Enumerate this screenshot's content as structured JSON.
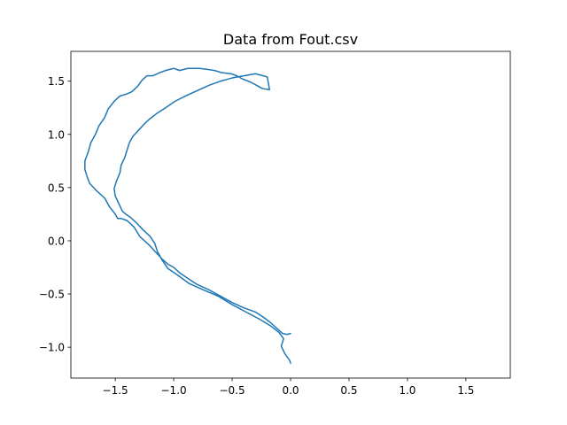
{
  "chart_data": {
    "type": "line",
    "title": "Data from Fout.csv",
    "xlabel": "",
    "ylabel": "",
    "xlim": [
      -1.88,
      1.88
    ],
    "ylim": [
      -1.29,
      1.78
    ],
    "xticks": [
      -1.5,
      -1.0,
      -0.5,
      0.0,
      0.5,
      1.0,
      1.5
    ],
    "xtick_labels": [
      "−1.5",
      "−1.0",
      "−0.5",
      "0.0",
      "0.5",
      "1.0",
      "1.5"
    ],
    "yticks": [
      -1.0,
      -0.5,
      0.0,
      0.5,
      1.0,
      1.5
    ],
    "ytick_labels": [
      "−1.0",
      "−0.5",
      "0.0",
      "0.5",
      "1.0",
      "1.5"
    ],
    "grid": false,
    "line_color": "#1f77b4",
    "series": [
      {
        "x": [
          0.0,
          -0.01,
          -0.05,
          -0.08,
          -0.06,
          -0.1,
          -0.17,
          -0.26,
          -0.38,
          -0.5,
          -0.62,
          -0.75,
          -0.87,
          -0.97,
          -1.05,
          -1.1,
          -1.14,
          -1.16,
          -1.2,
          -1.26,
          -1.32,
          -1.37,
          -1.41,
          -1.44,
          -1.47,
          -1.5,
          -1.51,
          -1.49,
          -1.46,
          -1.45,
          -1.42,
          -1.4,
          -1.38,
          -1.35,
          -1.3,
          -1.25,
          -1.2,
          -1.14,
          -1.07,
          -0.99,
          -0.9,
          -0.8,
          -0.7,
          -0.6,
          -0.5,
          -0.4,
          -0.3,
          -0.2,
          -0.18,
          -0.24,
          -0.29,
          -0.34,
          -0.41,
          -0.46,
          -0.51,
          -0.59,
          -0.65,
          -0.71,
          -0.78,
          -0.83,
          -0.88,
          -0.95,
          -1.0,
          -1.07,
          -1.12,
          -1.18,
          -1.23,
          -1.27,
          -1.31,
          -1.36,
          -1.4,
          -1.46,
          -1.51,
          -1.56,
          -1.59,
          -1.64,
          -1.67,
          -1.71,
          -1.73,
          -1.76,
          -1.76,
          -1.74,
          -1.72,
          -1.66,
          -1.59,
          -1.55,
          -1.5,
          -1.48,
          -1.45,
          -1.4,
          -1.34,
          -1.29,
          -1.21,
          -1.16,
          -1.1,
          -1.05,
          -1.0,
          -0.95,
          -0.87,
          -0.8,
          -0.7,
          -0.6,
          -0.5,
          -0.4,
          -0.3,
          -0.23,
          -0.17,
          -0.12,
          -0.09,
          -0.09,
          -0.07,
          -0.03,
          0.0
        ],
        "y": [
          -1.15,
          -1.12,
          -1.06,
          -0.99,
          -0.92,
          -0.86,
          -0.8,
          -0.74,
          -0.67,
          -0.6,
          -0.52,
          -0.46,
          -0.4,
          -0.32,
          -0.26,
          -0.18,
          -0.1,
          -0.03,
          0.04,
          0.1,
          0.17,
          0.22,
          0.25,
          0.28,
          0.35,
          0.42,
          0.49,
          0.56,
          0.64,
          0.71,
          0.78,
          0.85,
          0.92,
          0.98,
          1.04,
          1.1,
          1.15,
          1.2,
          1.25,
          1.31,
          1.36,
          1.41,
          1.46,
          1.5,
          1.53,
          1.55,
          1.57,
          1.54,
          1.42,
          1.43,
          1.46,
          1.49,
          1.52,
          1.55,
          1.57,
          1.58,
          1.6,
          1.61,
          1.62,
          1.62,
          1.62,
          1.6,
          1.62,
          1.6,
          1.58,
          1.55,
          1.55,
          1.51,
          1.45,
          1.4,
          1.38,
          1.36,
          1.31,
          1.24,
          1.16,
          1.08,
          1.0,
          0.92,
          0.84,
          0.75,
          0.67,
          0.6,
          0.54,
          0.47,
          0.4,
          0.32,
          0.25,
          0.21,
          0.21,
          0.19,
          0.13,
          0.04,
          -0.04,
          -0.1,
          -0.17,
          -0.22,
          -0.25,
          -0.3,
          -0.36,
          -0.41,
          -0.46,
          -0.52,
          -0.58,
          -0.63,
          -0.67,
          -0.72,
          -0.77,
          -0.82,
          -0.85,
          -0.85,
          -0.87,
          -0.88,
          -0.87
        ]
      }
    ]
  }
}
